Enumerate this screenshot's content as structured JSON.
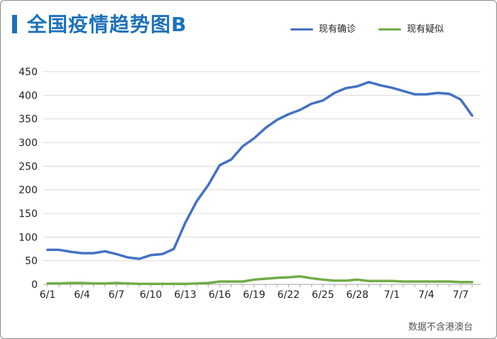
{
  "title": "全国疫情趋势图B",
  "source": "数据不含港澳台",
  "colors": {
    "confirmed": "#4472c4",
    "suspected": "#70ad47",
    "title": "#1e72b8",
    "grid": "#d9d9d9"
  },
  "chart_data": {
    "type": "line",
    "title": "全国疫情趋势图B",
    "xlabel": "",
    "ylabel": "",
    "ylim": [
      0,
      450
    ],
    "yticks": [
      0,
      50,
      100,
      150,
      200,
      250,
      300,
      350,
      400,
      450
    ],
    "grid": true,
    "legend_position": "top-right",
    "x": [
      "6/1",
      "6/2",
      "6/3",
      "6/4",
      "6/5",
      "6/6",
      "6/7",
      "6/8",
      "6/9",
      "6/10",
      "6/11",
      "6/12",
      "6/13",
      "6/14",
      "6/15",
      "6/16",
      "6/17",
      "6/18",
      "6/19",
      "6/20",
      "6/21",
      "6/22",
      "6/23",
      "6/24",
      "6/25",
      "6/26",
      "6/27",
      "6/28",
      "6/29",
      "6/30",
      "7/1",
      "7/2",
      "7/3",
      "7/4",
      "7/5",
      "7/6",
      "7/7",
      "7/8"
    ],
    "xtick_labels": [
      "6/1",
      "6/4",
      "6/7",
      "6/10",
      "6/13",
      "6/16",
      "6/19",
      "6/22",
      "6/25",
      "6/28",
      "7/1",
      "7/4",
      "7/7"
    ],
    "series": [
      {
        "name": "现有确诊",
        "color": "#4472c4",
        "values": [
          73,
          73,
          69,
          66,
          66,
          70,
          64,
          57,
          54,
          62,
          64,
          75,
          130,
          176,
          210,
          252,
          264,
          292,
          309,
          331,
          348,
          360,
          369,
          382,
          389,
          405,
          415,
          419,
          428,
          421,
          416,
          409,
          402,
          402,
          405,
          403,
          391,
          357
        ]
      },
      {
        "name": "现有疑似",
        "color": "#70ad47",
        "values": [
          2,
          2,
          3,
          3,
          2,
          2,
          3,
          2,
          1,
          1,
          1,
          1,
          1,
          2,
          3,
          6,
          6,
          6,
          10,
          12,
          14,
          15,
          17,
          13,
          10,
          8,
          8,
          10,
          7,
          7,
          7,
          6,
          6,
          6,
          6,
          6,
          5,
          5
        ]
      }
    ]
  }
}
